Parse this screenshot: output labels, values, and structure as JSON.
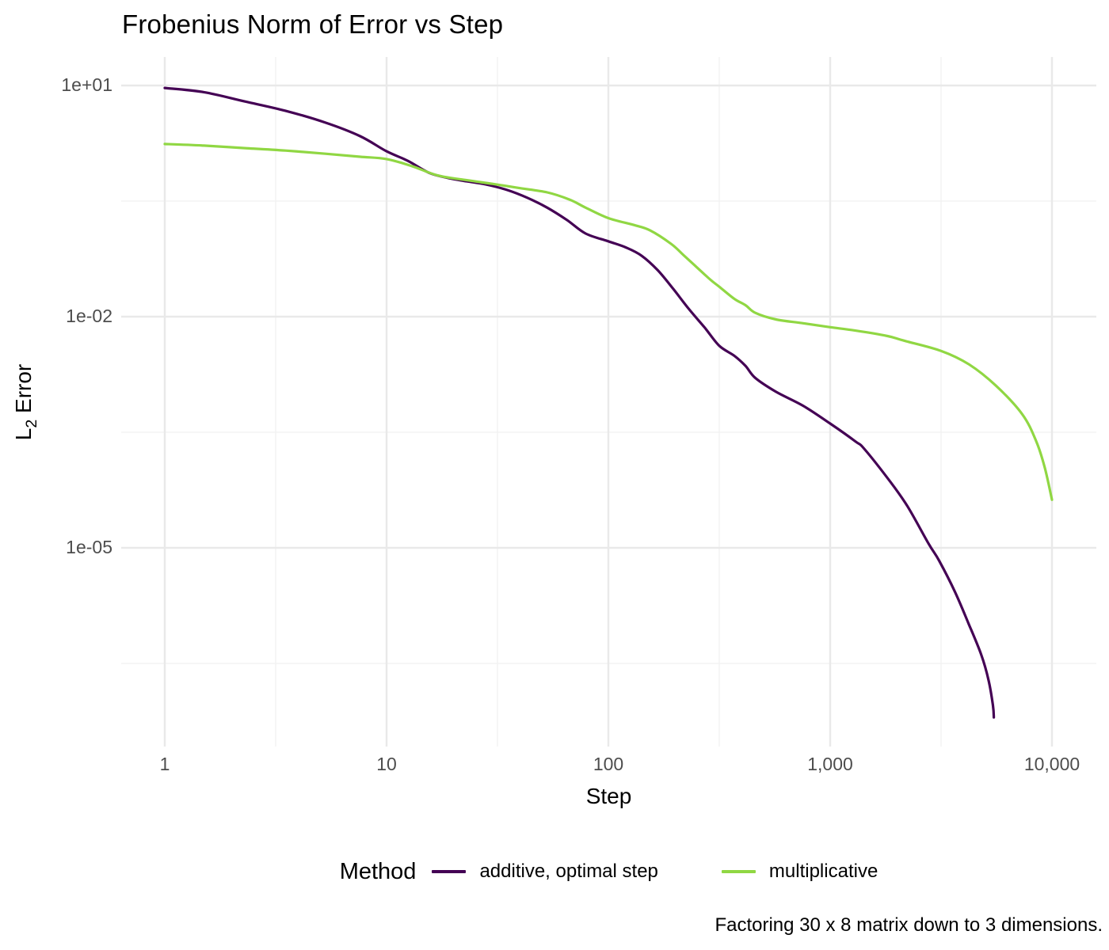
{
  "title": "Frobenius Norm of Error vs Step",
  "caption": "Factoring 30 x 8 matrix down to 3 dimensions.",
  "axes": {
    "x": {
      "title": "Step",
      "major_ticks": [
        {
          "label": "1",
          "value": 1
        },
        {
          "label": "10",
          "value": 10
        },
        {
          "label": "100",
          "value": 100
        },
        {
          "label": "1,000",
          "value": 1000
        },
        {
          "label": "10,000",
          "value": 10000
        }
      ],
      "minor_tick_values": [
        3.1623,
        31.623,
        316.23,
        3162.3
      ]
    },
    "y": {
      "title_parts": {
        "main": "L",
        "sub": "2",
        "rest": " Error"
      },
      "major_ticks": [
        {
          "label": "1e+01",
          "value": 10
        },
        {
          "label": "1e-02",
          "value": 0.01
        },
        {
          "label": "1e-05",
          "value": 1e-05
        }
      ],
      "minor_tick_values": [
        0.31623,
        0.00031623,
        3.1623e-07
      ]
    }
  },
  "legend": {
    "title": "Method",
    "entries": [
      {
        "label": "additive, optimal step"
      },
      {
        "label": "multiplicative"
      }
    ]
  },
  "style": {
    "grid_major_color": "#e9e9e9",
    "grid_minor_color": "#f1f1f1",
    "tick_text_color": "#4d4d4d"
  },
  "chart_data": {
    "type": "line",
    "title": "Frobenius Norm of Error vs Step",
    "xlabel": "Step",
    "ylabel": "L2 Error",
    "x_scale": "log",
    "y_scale": "log",
    "xlim": [
      1,
      10000
    ],
    "ylim": [
      2.6e-08,
      23
    ],
    "grid": true,
    "legend_position": "bottom",
    "series": [
      {
        "name": "additive, optimal step",
        "color": "#440154",
        "points": [
          [
            1,
            9.3
          ],
          [
            1.5,
            8.2
          ],
          [
            2.3,
            6.2
          ],
          [
            3.5,
            4.7
          ],
          [
            5.3,
            3.3
          ],
          [
            7.6,
            2.2
          ],
          [
            10,
            1.4
          ],
          [
            12.5,
            1.05
          ],
          [
            15.5,
            0.74
          ],
          [
            19,
            0.63
          ],
          [
            23,
            0.57
          ],
          [
            28,
            0.52
          ],
          [
            35,
            0.44
          ],
          [
            43,
            0.35
          ],
          [
            53,
            0.26
          ],
          [
            65,
            0.18
          ],
          [
            79,
            0.12
          ],
          [
            100,
            0.095
          ],
          [
            120,
            0.079
          ],
          [
            141,
            0.062
          ],
          [
            167,
            0.04
          ],
          [
            196,
            0.023
          ],
          [
            230,
            0.0127
          ],
          [
            272,
            0.0072
          ],
          [
            316,
            0.0042
          ],
          [
            370,
            0.0031
          ],
          [
            415,
            0.0023
          ],
          [
            460,
            0.0016
          ],
          [
            570,
            0.00106
          ],
          [
            760,
            0.00069
          ],
          [
            1000,
            0.00041
          ],
          [
            1300,
            0.00024
          ],
          [
            1430,
            0.00019
          ],
          [
            1880,
            7e-05
          ],
          [
            2240,
            3.4e-05
          ],
          [
            2780,
            1.13e-05
          ],
          [
            3100,
            6.8e-06
          ],
          [
            3650,
            2.7e-06
          ],
          [
            4200,
            1.05e-06
          ],
          [
            4800,
            4.1e-07
          ],
          [
            5180,
            1.9e-07
          ],
          [
            5420,
            9e-08
          ],
          [
            5470,
            6.3e-08
          ]
        ]
      },
      {
        "name": "multiplicative",
        "color": "#90d743",
        "points": [
          [
            1,
            1.74
          ],
          [
            1.5,
            1.66
          ],
          [
            2.3,
            1.54
          ],
          [
            3.5,
            1.43
          ],
          [
            5.3,
            1.3
          ],
          [
            7.6,
            1.19
          ],
          [
            10,
            1.11
          ],
          [
            13,
            0.9
          ],
          [
            17,
            0.68
          ],
          [
            23,
            0.59
          ],
          [
            30,
            0.53
          ],
          [
            39,
            0.47
          ],
          [
            53,
            0.41
          ],
          [
            67,
            0.33
          ],
          [
            79,
            0.26
          ],
          [
            100,
            0.19
          ],
          [
            130,
            0.155
          ],
          [
            154,
            0.132
          ],
          [
            192,
            0.088
          ],
          [
            218,
            0.063
          ],
          [
            250,
            0.044
          ],
          [
            289,
            0.03
          ],
          [
            316,
            0.0245
          ],
          [
            370,
            0.017
          ],
          [
            415,
            0.0141
          ],
          [
            460,
            0.0112
          ],
          [
            570,
            0.0092
          ],
          [
            760,
            0.0082
          ],
          [
            1000,
            0.0073
          ],
          [
            1300,
            0.0066
          ],
          [
            1815,
            0.0056
          ],
          [
            2140,
            0.0049
          ],
          [
            3160,
            0.0036
          ],
          [
            4230,
            0.0024
          ],
          [
            5590,
            0.00127
          ],
          [
            7350,
            0.00054
          ],
          [
            8500,
            0.00024
          ],
          [
            9280,
            0.00011
          ],
          [
            10000,
            4.2e-05
          ]
        ]
      }
    ]
  }
}
